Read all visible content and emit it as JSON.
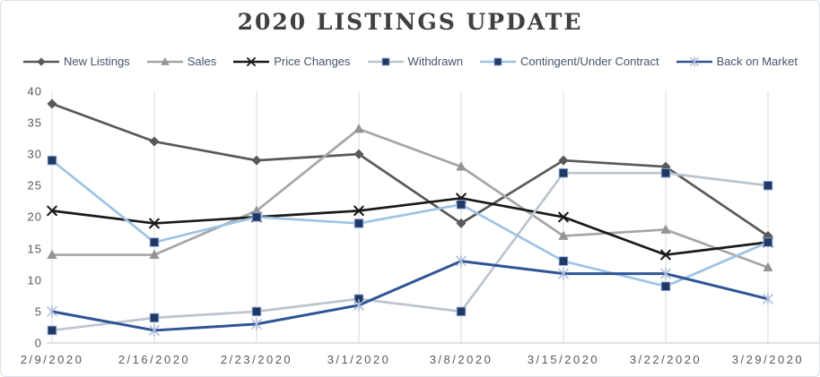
{
  "title": "2020 LISTINGS UPDATE",
  "chart_data": {
    "type": "line",
    "categories": [
      "2/9/2020",
      "2/16/2020",
      "2/23/2020",
      "3/1/2020",
      "3/8/2020",
      "3/15/2020",
      "3/22/2020",
      "3/29/2020"
    ],
    "series": [
      {
        "name": "New Listings",
        "values": [
          38,
          32,
          29,
          30,
          19,
          29,
          28,
          17
        ],
        "color": "#595959",
        "marker": "diamond",
        "marker_color": "#595959"
      },
      {
        "name": "Sales",
        "values": [
          14,
          14,
          21,
          34,
          28,
          17,
          18,
          12
        ],
        "color": "#a5a5a5",
        "marker": "triangle",
        "marker_color": "#949494"
      },
      {
        "name": "Price Changes",
        "values": [
          21,
          19,
          20,
          21,
          23,
          20,
          14,
          16
        ],
        "color": "#1a1a1a",
        "marker": "x",
        "marker_color": "#1a1a1a"
      },
      {
        "name": "Withdrawn",
        "values": [
          2,
          4,
          5,
          7,
          5,
          27,
          27,
          25
        ],
        "color": "#bdc4ce",
        "marker": "square",
        "marker_color": "#1f3864"
      },
      {
        "name": "Contingent/Under Contract",
        "values": [
          29,
          16,
          20,
          19,
          22,
          13,
          9,
          16
        ],
        "color": "#9dc3e6",
        "marker": "square",
        "marker_color": "#1f3864"
      },
      {
        "name": "Back on Market",
        "values": [
          5,
          2,
          3,
          6,
          13,
          11,
          11,
          7
        ],
        "color": "#2f5496",
        "marker": "star",
        "marker_color": "#aab9d6"
      }
    ],
    "y_ticks": [
      0,
      5,
      10,
      15,
      20,
      25,
      30,
      35,
      40
    ],
    "ylim": [
      0,
      40
    ],
    "grid": "vertical",
    "legend_position": "top"
  },
  "colors": {
    "title_text": "#404040",
    "legend_text": "#44546a",
    "axis_text": "#595959",
    "gridline": "#d9d9d9",
    "axis_line": "#d0d0d0",
    "square_marker_edge": "#8faadc"
  }
}
